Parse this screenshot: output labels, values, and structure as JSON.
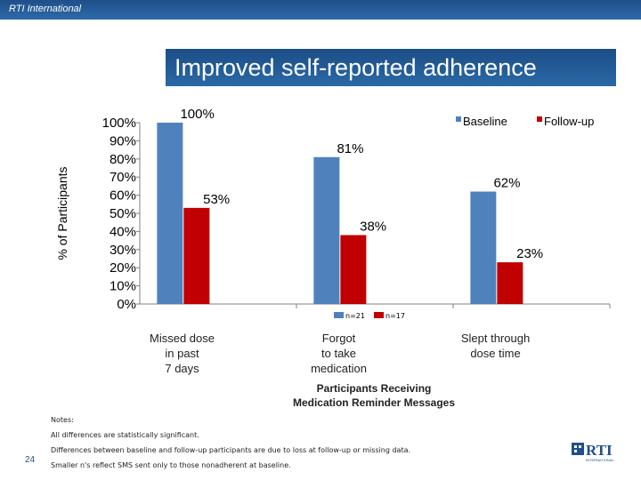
{
  "header": {
    "org": "RTI International"
  },
  "slide": {
    "title": "Improved self-reported adherence",
    "page_number": "24",
    "notes": [
      "Notes:",
      "All differences are statistically significant.",
      "Differences between baseline and follow-up participants are due to loss at follow-up or missing data.",
      "Smaller n's reflect SMS sent only to those nonadherent at baseline."
    ],
    "logo_text": "RTI",
    "logo_subtext": "INTERNATIONAL"
  },
  "chart_data": {
    "type": "bar",
    "title": "",
    "ylabel": "% of Participants",
    "xlabel_lines": [
      "Participants Receiving",
      "Medication Reminder Messages"
    ],
    "ylim": [
      0,
      100
    ],
    "yticks": [
      0,
      10,
      20,
      30,
      40,
      50,
      60,
      70,
      80,
      90,
      100
    ],
    "ytick_labels": [
      "0%",
      "10%",
      "20%",
      "30%",
      "40%",
      "50%",
      "60%",
      "70%",
      "80%",
      "90%",
      "100%"
    ],
    "categories": [
      [
        "Missed dose",
        "in past",
        "7 days"
      ],
      [
        "Forgot",
        "to take",
        "medication"
      ],
      [
        "Slept through",
        "dose time"
      ]
    ],
    "series": [
      {
        "name": "Baseline",
        "n_label": "n=21",
        "color": "#4f81bd",
        "values": [
          100,
          81,
          62
        ],
        "labels": [
          "100%",
          "81%",
          "62%"
        ]
      },
      {
        "name": "Follow-up",
        "n_label": "n=17",
        "color": "#c00000",
        "values": [
          53,
          38,
          23
        ],
        "labels": [
          "53%",
          "38%",
          "23%"
        ]
      }
    ],
    "legend": "top-right"
  }
}
